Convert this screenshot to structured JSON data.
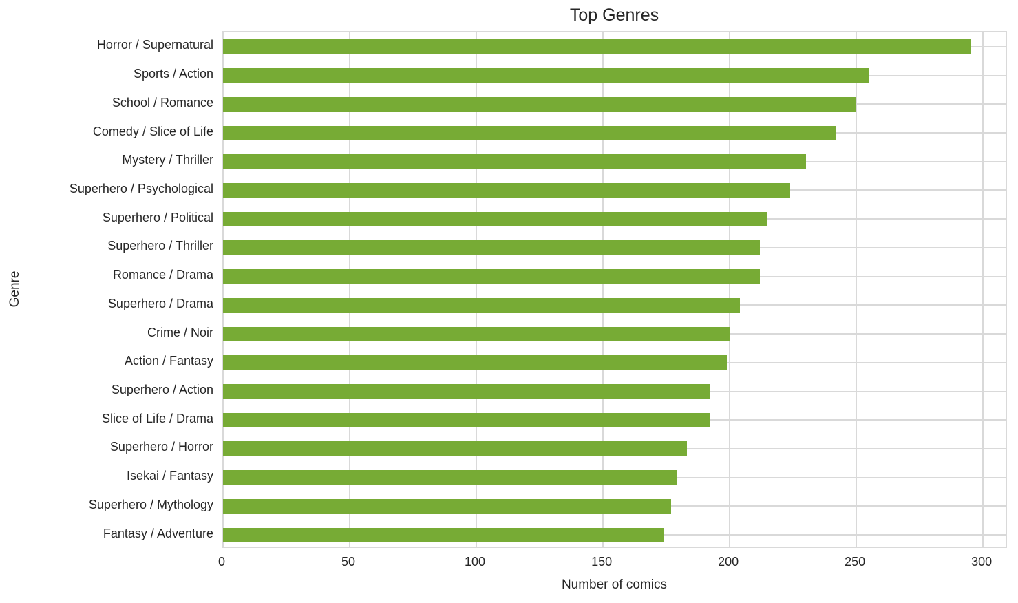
{
  "chart_data": {
    "type": "bar",
    "orientation": "horizontal",
    "title": "Top Genres",
    "xlabel": "Number of comics",
    "ylabel": "Genre",
    "categories": [
      "Horror / Supernatural",
      "Sports / Action",
      "School / Romance",
      "Comedy / Slice of Life",
      "Mystery / Thriller",
      "Superhero / Psychological",
      "Superhero / Political",
      "Superhero / Thriller",
      "Romance / Drama",
      "Superhero / Drama",
      "Crime / Noir",
      "Action / Fantasy",
      "Superhero / Action",
      "Slice of Life / Drama",
      "Superhero / Horror",
      "Isekai / Fantasy",
      "Superhero / Mythology",
      "Fantasy / Adventure"
    ],
    "values": [
      295,
      255,
      250,
      242,
      230,
      224,
      215,
      212,
      212,
      204,
      200,
      199,
      192,
      192,
      183,
      179,
      177,
      174
    ],
    "xticks": [
      0,
      50,
      100,
      150,
      200,
      250,
      300
    ],
    "xlim": [
      0,
      310
    ],
    "grid": true,
    "legend_position": "none",
    "bar_color": "#77ab35",
    "grid_color": "#d9d9d9",
    "text_color": "#262626",
    "background_color": "#ffffff"
  }
}
